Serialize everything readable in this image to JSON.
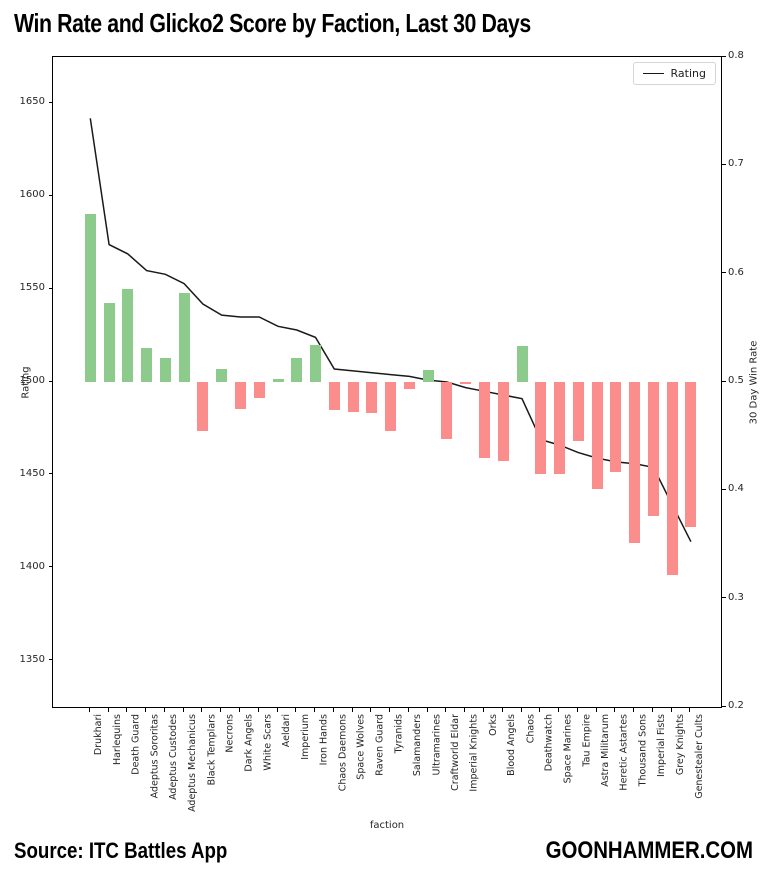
{
  "title": "Win Rate and Glicko2 Score by Faction, Last 30 Days",
  "source_note": "Source: ITC Battles App",
  "brand": "GOONHAMMER.COM",
  "legend": {
    "items": [
      {
        "label": "Rating",
        "marker": "line",
        "color": "#1a1a1a"
      }
    ]
  },
  "colors": {
    "positive_bar": "#8ccb8c",
    "negative_bar": "#fb8d8d",
    "line": "#1a1a1a",
    "axis": "#000000",
    "tick_text": "#262626"
  },
  "chart_data": {
    "type": "bar+line",
    "title": "Win Rate and Glicko2 Score by Faction, Last 30 Days",
    "xlabel": "faction",
    "ylabel_left": "Rating",
    "ylabel_right": "30 Day Win Rate",
    "ylim_left": [
      1325,
      1675
    ],
    "ylim_right": [
      0.2,
      0.8
    ],
    "yticks_left": [
      "1350",
      "1400",
      "1450",
      "1500",
      "1550",
      "1600",
      "1650"
    ],
    "yticks_right": [
      "0.2",
      "0.3",
      "0.4",
      "0.5",
      "0.6",
      "0.7",
      "0.8"
    ],
    "win_rate_baseline": 0.5,
    "grid": false,
    "legend_position": "upper right",
    "categories": [
      "Drukhari",
      "Harlequins",
      "Death Guard",
      "Adeptus Sororitas",
      "Adeptus Custodes",
      "Adeptus Mechanicus",
      "Black Templars",
      "Necrons",
      "Dark Angels",
      "White Scars",
      "Aeldari",
      "Imperium",
      "Iron Hands",
      "Chaos Daemons",
      "Space Wolves",
      "Raven Guard",
      "Tyranids",
      "Salamanders",
      "Ultramarines",
      "Craftworld Eldar",
      "Imperial Knights",
      "Orks",
      "Blood Angels",
      "Chaos",
      "Deathwatch",
      "Space Marines",
      "Tau Empire",
      "Astra Militarum",
      "Heretic Astartes",
      "Thousand Sons",
      "Imperial Fists",
      "Grey Knights",
      "Genestealer Cults"
    ],
    "series": [
      {
        "name": "30 Day Win Rate",
        "type": "bar",
        "axis": "right",
        "values": [
          0.655,
          0.573,
          0.586,
          0.531,
          0.522,
          0.582,
          0.455,
          0.512,
          0.475,
          0.485,
          0.503,
          0.522,
          0.534,
          0.474,
          0.472,
          0.471,
          0.455,
          0.494,
          0.511,
          0.447,
          0.498,
          0.43,
          0.427,
          0.533,
          0.415,
          0.415,
          0.446,
          0.401,
          0.417,
          0.351,
          0.376,
          0.322,
          0.366
        ]
      },
      {
        "name": "Rating",
        "type": "line",
        "axis": "left",
        "values": [
          1642,
          1574,
          1569,
          1560,
          1558,
          1553,
          1542,
          1536,
          1535,
          1535,
          1530,
          1528,
          1524,
          1507,
          1506,
          1505,
          1504,
          1503,
          1501,
          1500,
          1497,
          1495,
          1493,
          1491,
          1469,
          1466,
          1462,
          1459,
          1457,
          1456,
          1454,
          1434,
          1414
        ]
      }
    ]
  }
}
